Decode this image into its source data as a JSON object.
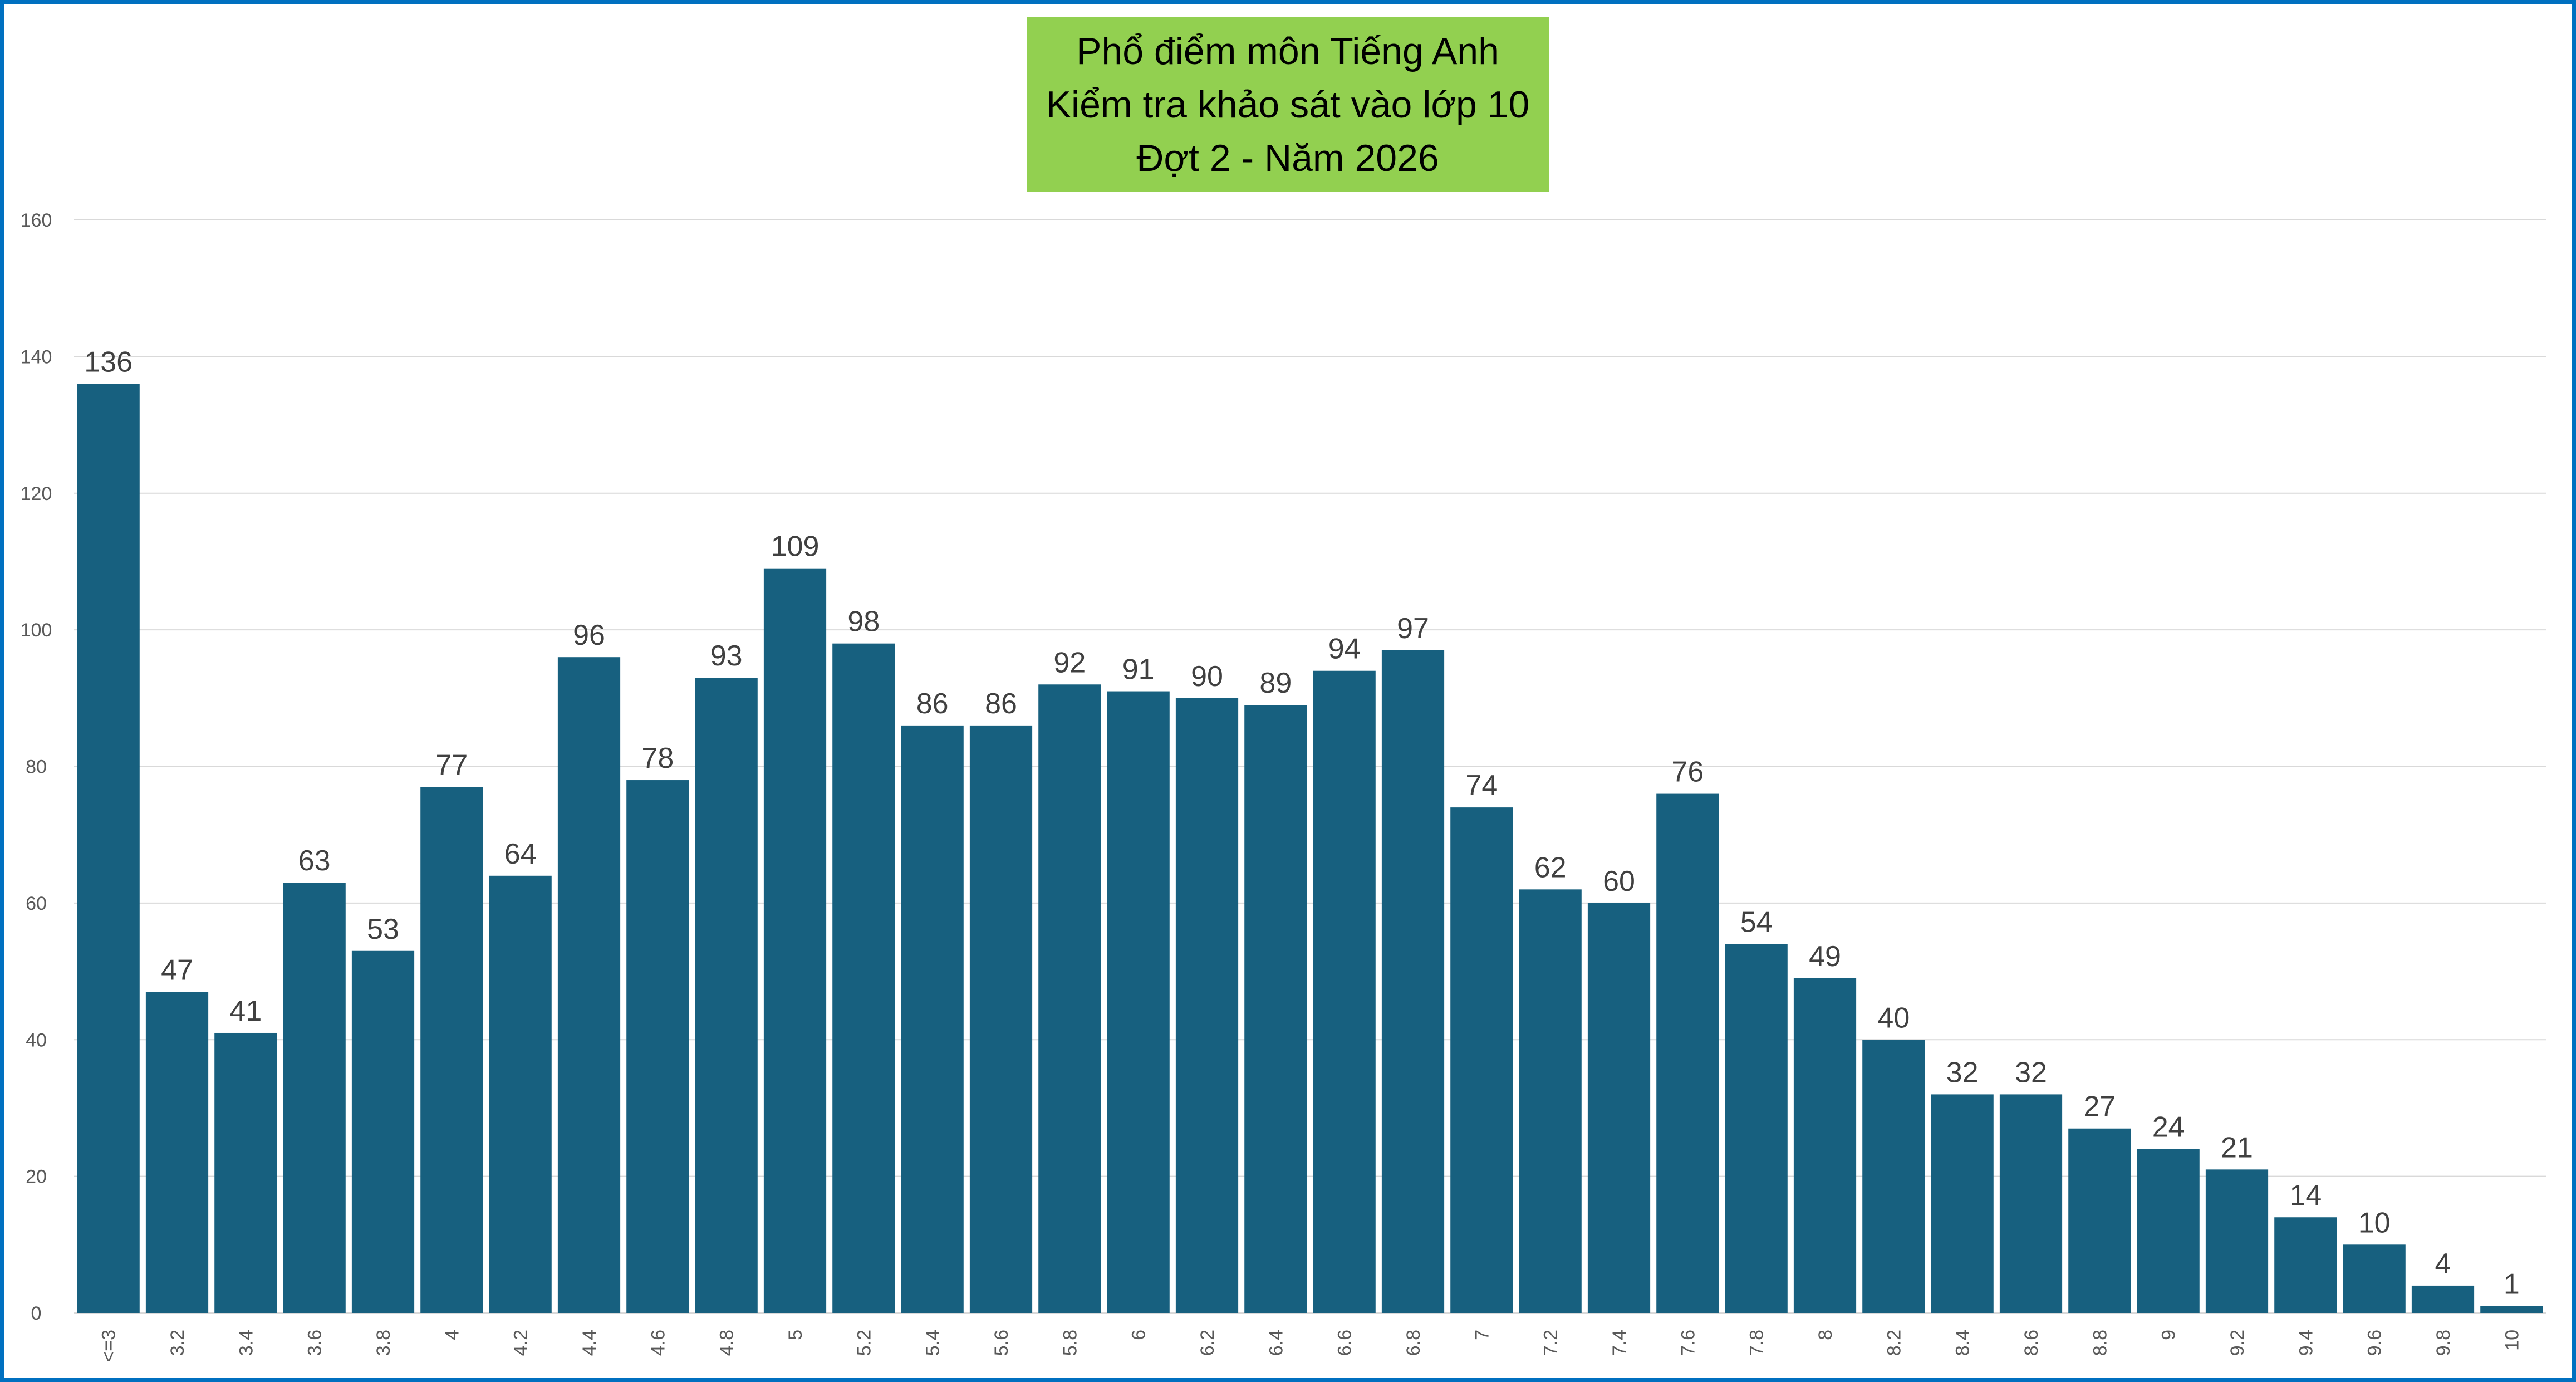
{
  "chart_data": {
    "type": "bar",
    "title": [
      "Phổ điểm môn Tiếng Anh",
      "Kiểm tra khảo sát vào lớp 10",
      "Đợt 2 - Năm 2026"
    ],
    "xlabel": "",
    "ylabel": "",
    "ylim": [
      0,
      160
    ],
    "yticks": [
      "0",
      "20",
      "40",
      "60",
      "80",
      "100",
      "120",
      "140",
      "160"
    ],
    "grid": true,
    "categories": [
      "<=3",
      "3.2",
      "3.4",
      "3.6",
      "3.8",
      "4",
      "4.2",
      "4.4",
      "4.6",
      "4.8",
      "5",
      "5.2",
      "5.4",
      "5.6",
      "5.8",
      "6",
      "6.2",
      "6.4",
      "6.6",
      "6.8",
      "7",
      "7.2",
      "7.4",
      "7.6",
      "7.8",
      "8",
      "8.2",
      "8.4",
      "8.6",
      "8.8",
      "9",
      "9.2",
      "9.4",
      "9.6",
      "9.8",
      "10"
    ],
    "values": [
      136,
      47,
      41,
      63,
      53,
      77,
      64,
      96,
      78,
      93,
      109,
      98,
      86,
      86,
      92,
      91,
      90,
      89,
      94,
      97,
      74,
      62,
      60,
      76,
      54,
      49,
      40,
      32,
      32,
      27,
      24,
      21,
      14,
      10,
      4,
      1
    ],
    "bar_color": "#17607F",
    "title_bg": "#92D050",
    "border_color": "#0070C0"
  }
}
